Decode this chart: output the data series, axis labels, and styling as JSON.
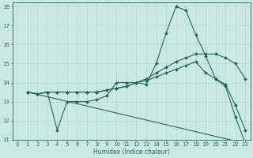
{
  "xlabel": "Humidex (Indice chaleur)",
  "background_color": "#cce8e4",
  "grid_color": "#aad4cc",
  "line_color": "#1a6b5a",
  "xlim": [
    -0.5,
    23.5
  ],
  "ylim": [
    11,
    18.2
  ],
  "yticks": [
    11,
    12,
    13,
    14,
    15,
    16,
    17,
    18
  ],
  "xticks": [
    0,
    1,
    2,
    3,
    4,
    5,
    6,
    7,
    8,
    9,
    10,
    11,
    12,
    13,
    14,
    15,
    16,
    17,
    18,
    19,
    20,
    21,
    22,
    23
  ],
  "lines": [
    {
      "x": [
        1,
        2,
        3,
        4,
        5,
        6,
        7,
        8,
        9,
        10,
        11,
        12,
        13,
        14,
        15,
        16,
        17,
        18,
        19,
        20,
        21,
        22,
        23
      ],
      "y": [
        13.5,
        13.4,
        13.5,
        11.5,
        13.0,
        13.0,
        13.0,
        13.1,
        13.3,
        14.0,
        14.0,
        14.0,
        13.9,
        15.0,
        16.6,
        18.0,
        17.8,
        16.5,
        15.4,
        14.2,
        13.8,
        12.2,
        10.8
      ],
      "markers": true
    },
    {
      "x": [
        1,
        2,
        3,
        4,
        5,
        6,
        7,
        8,
        9,
        10,
        11,
        12,
        13,
        14,
        15,
        16,
        17,
        18,
        19,
        20,
        21,
        22,
        23
      ],
      "y": [
        13.5,
        13.4,
        13.5,
        13.5,
        13.5,
        13.5,
        13.5,
        13.5,
        13.6,
        13.7,
        13.8,
        14.0,
        14.2,
        14.5,
        14.8,
        15.1,
        15.3,
        15.5,
        15.5,
        15.5,
        15.3,
        15.0,
        14.2
      ],
      "markers": true
    },
    {
      "x": [
        1,
        2,
        3,
        4,
        5,
        6,
        7,
        8,
        9,
        10,
        11,
        12,
        13,
        14,
        15,
        16,
        17,
        18,
        19,
        20,
        21,
        22,
        23
      ],
      "y": [
        13.5,
        13.4,
        13.5,
        13.5,
        13.5,
        13.5,
        13.5,
        13.5,
        13.6,
        13.7,
        13.8,
        14.0,
        14.1,
        14.3,
        14.5,
        14.7,
        14.9,
        15.1,
        14.5,
        14.2,
        13.9,
        12.8,
        11.5
      ],
      "markers": true
    },
    {
      "x": [
        1,
        23
      ],
      "y": [
        13.5,
        10.8
      ],
      "markers": false
    }
  ]
}
